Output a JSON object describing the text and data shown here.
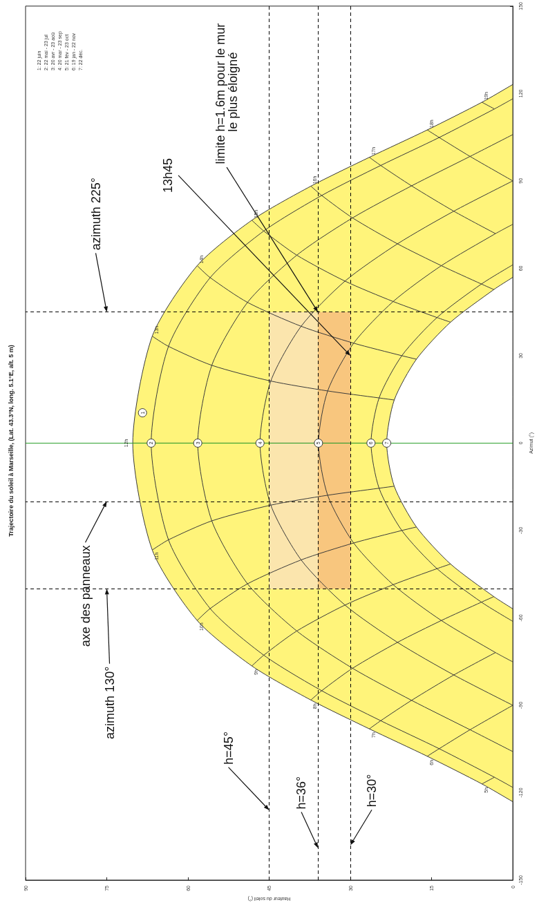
{
  "chart_data": {
    "type": "line",
    "title": "Trajectoire du soleil à Marseille, (Lat. 43.3°N, long. 5.1°E, alt. 5 m)",
    "xlabel": "Hauteur du soleil (°)",
    "ylabel": "Azimut (°)",
    "xlim": [
      90,
      0
    ],
    "xticks": [
      90,
      75,
      60,
      45,
      30,
      15,
      0
    ],
    "ylim": [
      -150,
      150
    ],
    "yticks": [
      -150,
      -120,
      -90,
      -60,
      -30,
      0,
      30,
      60,
      90,
      120,
      150
    ],
    "series": [
      {
        "type": "area",
        "color": "#fff47a",
        "x": [
          0,
          5.7,
          15.8,
          26.5,
          37.3,
          48.2,
          58.3,
          66.6,
          70.2,
          66.6,
          58.3,
          48.2,
          37.3,
          26.5,
          15.8,
          5.7,
          0
        ],
        "values": [
          -123.1,
          -117.0,
          -107.5,
          -98.1,
          -88.2,
          -76.5,
          -60.9,
          -36.7,
          0,
          36.7,
          60.9,
          76.5,
          88.2,
          98.1,
          107.5,
          117.0,
          123.1
        ]
      },
      {
        "type": "line",
        "color": "#3a3a3a",
        "x": [
          0,
          3.4,
          13.6,
          24.4,
          35.3,
          46.0,
          55.9,
          63.6,
          66.8,
          63.6,
          55.9,
          46.0,
          35.3,
          24.4,
          13.6,
          3.4,
          0
        ],
        "values": [
          -118.2,
          -114.7,
          -104.9,
          -95.3,
          -85.0,
          -72.8,
          -56.8,
          -33.2,
          0,
          33.2,
          56.8,
          72.8,
          85.0,
          95.3,
          104.9,
          114.7,
          118.2
        ]
      },
      {
        "type": "line",
        "color": "#3a3a3a",
        "x": [
          0,
          7.9,
          18.7,
          29.6,
          39.9,
          49.0,
          55.6,
          58.2,
          55.6,
          49.0,
          39.9,
          29.6,
          18.7,
          7.9,
          0
        ],
        "values": [
          -105.9,
          -98.4,
          -88.3,
          -77.3,
          -64.5,
          -48.3,
          -26.7,
          0,
          26.7,
          48.3,
          64.5,
          77.3,
          88.3,
          98.4,
          105.9
        ]
      },
      {
        "type": "line",
        "color": "#3a3a3a",
        "x": [
          0,
          10.9,
          21.3,
          31.0,
          39.1,
          44.7,
          46.7,
          44.7,
          39.1,
          31.0,
          21.3,
          10.9,
          0
        ],
        "values": [
          -90,
          -79.6,
          -68.4,
          -55.6,
          -40.1,
          -21.3,
          0,
          21.3,
          40.1,
          55.6,
          68.4,
          79.6,
          90
        ]
      },
      {
        "type": "line",
        "color": "#3a3a3a",
        "x": [
          0,
          3.2,
          13.2,
          22.1,
          29.4,
          34.2,
          35.9,
          34.2,
          29.4,
          22.1,
          13.2,
          3.2,
          0
        ],
        "values": [
          -75.1,
          -71.9,
          -60.9,
          -48.6,
          -34.3,
          -17.9,
          0,
          17.9,
          34.3,
          48.6,
          60.9,
          71.9,
          75.1
        ]
      },
      {
        "type": "line",
        "color": "#3a3a3a",
        "x": [
          0,
          5.8,
          14.0,
          20.5,
          24.7,
          26.2,
          24.7,
          20.5,
          14.0,
          5.8,
          0
        ],
        "values": [
          -61.2,
          -54.6,
          -43.1,
          -30.0,
          -15.5,
          0,
          15.5,
          30.0,
          43.1,
          54.6,
          61.2
        ]
      },
      {
        "type": "area",
        "color": "#ffffff",
        "x": [
          0,
          3.5,
          11.5,
          17.8,
          21.9,
          23.3,
          21.9,
          17.8,
          11.5,
          3.5,
          0
        ],
        "values": [
          -56.9,
          -52.7,
          -41.5,
          -28.8,
          -14.8,
          0,
          14.8,
          28.8,
          41.5,
          52.7,
          56.9
        ]
      },
      {
        "type": "line",
        "color": "#3a3a3a",
        "x": [
          5.7,
          3.4
        ],
        "values": [
          -117.0,
          -114.7
        ]
      },
      {
        "type": "line",
        "color": "#3a3a3a",
        "x": [
          15.8,
          13.6,
          7.9,
          0
        ],
        "values": [
          -107.5,
          -104.9,
          -98.4,
          -90
        ]
      },
      {
        "type": "line",
        "color": "#3a3a3a",
        "x": [
          26.5,
          24.4,
          18.7,
          10.9,
          3.2
        ],
        "values": [
          -98.1,
          -95.3,
          -88.3,
          -79.6,
          -71.9
        ]
      },
      {
        "type": "line",
        "color": "#3a3a3a",
        "x": [
          37.3,
          35.3,
          29.6,
          21.3,
          13.2,
          5.8,
          3.5
        ],
        "values": [
          -88.2,
          -85.0,
          -77.3,
          -68.4,
          -60.9,
          -54.6,
          -52.7
        ]
      },
      {
        "type": "line",
        "color": "#3a3a3a",
        "x": [
          48.2,
          46.0,
          39.9,
          31.0,
          22.1,
          14.0,
          11.5
        ],
        "values": [
          -76.5,
          -72.8,
          -64.5,
          -55.6,
          -48.6,
          -43.1,
          -41.5
        ]
      },
      {
        "type": "line",
        "color": "#3a3a3a",
        "x": [
          58.3,
          55.9,
          49.0,
          39.1,
          29.4,
          20.5,
          17.8
        ],
        "values": [
          -60.9,
          -56.8,
          -48.3,
          -40.1,
          -34.3,
          -30.0,
          -28.8
        ]
      },
      {
        "type": "line",
        "color": "#3a3a3a",
        "x": [
          66.6,
          63.6,
          55.6,
          44.7,
          34.2,
          24.7,
          21.9
        ],
        "values": [
          -36.7,
          -33.2,
          -26.7,
          -21.3,
          -17.9,
          -15.5,
          -14.8
        ]
      },
      {
        "type": "line",
        "color": "#3a3a3a",
        "x": [
          70.2,
          66.8,
          58.2,
          46.7,
          35.9,
          26.2,
          23.3
        ],
        "values": [
          0,
          0,
          0,
          0,
          0,
          0,
          0
        ]
      },
      {
        "type": "line",
        "color": "#3a3a3a",
        "x": [
          21.9,
          24.7,
          34.2,
          44.7,
          55.6,
          63.6,
          66.6
        ],
        "values": [
          14.8,
          15.5,
          17.9,
          21.3,
          26.7,
          33.2,
          36.7
        ]
      },
      {
        "type": "line",
        "color": "#3a3a3a",
        "x": [
          17.8,
          20.5,
          29.4,
          39.1,
          49.0,
          55.9,
          58.3
        ],
        "values": [
          28.8,
          30.0,
          34.3,
          40.1,
          48.3,
          56.8,
          60.9
        ]
      },
      {
        "type": "line",
        "color": "#3a3a3a",
        "x": [
          11.5,
          14.0,
          22.1,
          31.0,
          39.9,
          46.0,
          48.2
        ],
        "values": [
          41.5,
          43.1,
          48.6,
          55.6,
          64.5,
          72.8,
          76.5
        ]
      },
      {
        "type": "line",
        "color": "#3a3a3a",
        "x": [
          3.5,
          5.8,
          13.2,
          21.3,
          29.6,
          35.3,
          37.3
        ],
        "values": [
          52.7,
          54.6,
          60.9,
          68.4,
          77.3,
          85.0,
          88.2
        ]
      },
      {
        "type": "line",
        "color": "#3a3a3a",
        "x": [
          3.2,
          10.9,
          18.7,
          24.4,
          26.5
        ],
        "values": [
          71.9,
          79.6,
          88.3,
          95.3,
          98.1
        ]
      },
      {
        "type": "line",
        "color": "#3a3a3a",
        "x": [
          0,
          7.9,
          13.6,
          15.8
        ],
        "values": [
          90,
          98.4,
          104.9,
          107.5
        ]
      },
      {
        "type": "line",
        "color": "#3a3a3a",
        "x": [
          3.4,
          5.7
        ],
        "values": [
          114.7,
          117.0
        ]
      }
    ],
    "bands": [
      {
        "axis": "x",
        "from": 45,
        "to": 36,
        "color": "#fbe5ad"
      },
      {
        "axis": "x",
        "from": 36,
        "to": 30,
        "color": "#f8c67e"
      }
    ],
    "ref_lines": [
      {
        "axis": "y",
        "value": 0,
        "color": "#2ca02c",
        "line_style": "solid"
      },
      {
        "axis": "y",
        "value": -50,
        "color": "#000000",
        "line_style": "dashed"
      },
      {
        "axis": "y",
        "value": -20,
        "color": "#000000",
        "line_style": "dashed"
      },
      {
        "axis": "y",
        "value": 45,
        "color": "#000000",
        "line_style": "dashed"
      },
      {
        "axis": "x",
        "value": 45,
        "color": "#000000",
        "line_style": "dashed"
      },
      {
        "axis": "x",
        "value": 36,
        "color": "#000000",
        "line_style": "dashed"
      },
      {
        "axis": "x",
        "value": 30,
        "color": "#000000",
        "line_style": "dashed"
      }
    ],
    "annotations": [
      {
        "text": "1",
        "x": 68.4,
        "y": 10.4
      },
      {
        "text": "2",
        "x": 66.8,
        "y": 0
      },
      {
        "text": "3",
        "x": 58.2,
        "y": 0
      },
      {
        "text": "4",
        "x": 46.7,
        "y": 0
      },
      {
        "text": "5",
        "x": 35.9,
        "y": 0
      },
      {
        "text": "6",
        "x": 26.2,
        "y": 0
      },
      {
        "text": "7",
        "x": 23.3,
        "y": 0
      },
      "5h",
      "6h",
      "7h",
      "8h",
      "9h",
      "10h",
      "11h",
      "12h",
      "13h",
      "14h",
      "15h",
      "16h",
      "17h",
      "18h",
      "19h",
      {
        "text": "azimuth 225°",
        "x": 75,
        "y": 45
      },
      {
        "text": "axe des panneaux",
        "x": 75,
        "y": -20
      },
      {
        "text": "azimuth 130°",
        "x": 75,
        "y": -50
      },
      {
        "text": "h=45°",
        "x": 45,
        "y": -126
      },
      {
        "text": "h=36°",
        "x": 36,
        "y": -139
      },
      {
        "text": "h=30°",
        "x": 30,
        "y": -138
      },
      {
        "text": "13h45",
        "x": 30,
        "y": 30
      },
      {
        "text": "limite h=1.6m pour le mur le plus éloigné",
        "x": 36,
        "y": 45
      },
      "1: 22 juin",
      "2: 22 mai - 23 jul",
      "3: 20 avr - 23 aoû",
      "4: 20 mar - 23 sep",
      "5: 21 fév - 23 oct",
      "6: 19 jan - 22 nov",
      "7: 22 déc."
    ]
  }
}
